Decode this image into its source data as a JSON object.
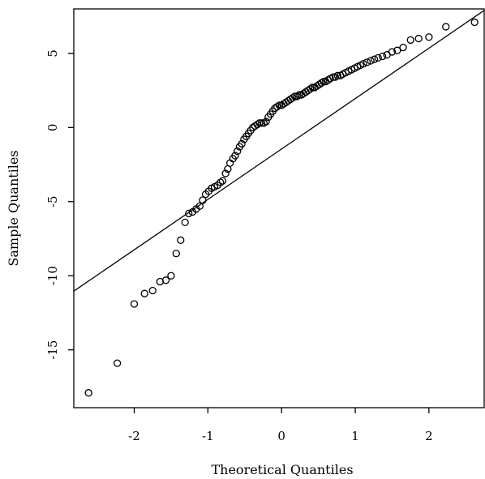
{
  "chart_data": {
    "type": "scatter",
    "title": "",
    "xlabel": "Theoretical Quantiles",
    "ylabel": "Sample Quantiles",
    "xlim": [
      -2.82,
      2.75
    ],
    "ylim": [
      -18.9,
      8.0
    ],
    "x_ticks": [
      -2,
      -1,
      0,
      1,
      2
    ],
    "x_tick_labels": [
      "-2",
      "-1",
      "0",
      "1",
      "2"
    ],
    "y_ticks": [
      -15,
      -10,
      -5,
      0,
      5
    ],
    "y_tick_labels": [
      "-15",
      "-10",
      "-5",
      "0",
      "5"
    ],
    "grid": false,
    "marker": "open-circle",
    "colors": {
      "points": "#000000",
      "line": "#000000",
      "axes": "#000000"
    },
    "reference_line": {
      "slope": 3.4,
      "intercept": -1.45
    },
    "points": [
      {
        "x": -2.62,
        "y": -17.9
      },
      {
        "x": -2.23,
        "y": -15.9
      },
      {
        "x": -2.0,
        "y": -11.9
      },
      {
        "x": -1.86,
        "y": -11.2
      },
      {
        "x": -1.75,
        "y": -11.0
      },
      {
        "x": -1.65,
        "y": -10.4
      },
      {
        "x": -1.57,
        "y": -10.3
      },
      {
        "x": -1.5,
        "y": -10.0
      },
      {
        "x": -1.43,
        "y": -8.5
      },
      {
        "x": -1.37,
        "y": -7.6
      },
      {
        "x": -1.31,
        "y": -6.4
      },
      {
        "x": -1.26,
        "y": -5.8
      },
      {
        "x": -1.21,
        "y": -5.7
      },
      {
        "x": -1.16,
        "y": -5.5
      },
      {
        "x": -1.11,
        "y": -5.3
      },
      {
        "x": -1.07,
        "y": -4.9
      },
      {
        "x": -1.03,
        "y": -4.5
      },
      {
        "x": -0.99,
        "y": -4.3
      },
      {
        "x": -0.95,
        "y": -4.1
      },
      {
        "x": -0.91,
        "y": -4.0
      },
      {
        "x": -0.87,
        "y": -3.9
      },
      {
        "x": -0.83,
        "y": -3.7
      },
      {
        "x": -0.8,
        "y": -3.6
      },
      {
        "x": -0.76,
        "y": -3.1
      },
      {
        "x": -0.73,
        "y": -2.8
      },
      {
        "x": -0.7,
        "y": -2.4
      },
      {
        "x": -0.66,
        "y": -2.1
      },
      {
        "x": -0.63,
        "y": -1.9
      },
      {
        "x": -0.6,
        "y": -1.6
      },
      {
        "x": -0.57,
        "y": -1.3
      },
      {
        "x": -0.54,
        "y": -1.1
      },
      {
        "x": -0.51,
        "y": -0.8
      },
      {
        "x": -0.48,
        "y": -0.6
      },
      {
        "x": -0.45,
        "y": -0.4
      },
      {
        "x": -0.42,
        "y": -0.2
      },
      {
        "x": -0.39,
        "y": 0.0
      },
      {
        "x": -0.36,
        "y": 0.1
      },
      {
        "x": -0.33,
        "y": 0.2
      },
      {
        "x": -0.3,
        "y": 0.3
      },
      {
        "x": -0.27,
        "y": 0.3
      },
      {
        "x": -0.24,
        "y": 0.3
      },
      {
        "x": -0.21,
        "y": 0.4
      },
      {
        "x": -0.18,
        "y": 0.7
      },
      {
        "x": -0.15,
        "y": 0.9
      },
      {
        "x": -0.12,
        "y": 1.1
      },
      {
        "x": -0.09,
        "y": 1.3
      },
      {
        "x": -0.06,
        "y": 1.4
      },
      {
        "x": -0.03,
        "y": 1.5
      },
      {
        "x": 0.0,
        "y": 1.5
      },
      {
        "x": 0.03,
        "y": 1.6
      },
      {
        "x": 0.06,
        "y": 1.7
      },
      {
        "x": 0.09,
        "y": 1.8
      },
      {
        "x": 0.12,
        "y": 1.9
      },
      {
        "x": 0.15,
        "y": 2.0
      },
      {
        "x": 0.18,
        "y": 2.1
      },
      {
        "x": 0.21,
        "y": 2.1
      },
      {
        "x": 0.24,
        "y": 2.2
      },
      {
        "x": 0.27,
        "y": 2.2
      },
      {
        "x": 0.3,
        "y": 2.3
      },
      {
        "x": 0.33,
        "y": 2.4
      },
      {
        "x": 0.36,
        "y": 2.5
      },
      {
        "x": 0.39,
        "y": 2.6
      },
      {
        "x": 0.42,
        "y": 2.7
      },
      {
        "x": 0.45,
        "y": 2.7
      },
      {
        "x": 0.48,
        "y": 2.8
      },
      {
        "x": 0.51,
        "y": 2.9
      },
      {
        "x": 0.54,
        "y": 3.0
      },
      {
        "x": 0.57,
        "y": 3.1
      },
      {
        "x": 0.6,
        "y": 3.1
      },
      {
        "x": 0.63,
        "y": 3.2
      },
      {
        "x": 0.66,
        "y": 3.3
      },
      {
        "x": 0.7,
        "y": 3.4
      },
      {
        "x": 0.73,
        "y": 3.4
      },
      {
        "x": 0.76,
        "y": 3.5
      },
      {
        "x": 0.8,
        "y": 3.5
      },
      {
        "x": 0.83,
        "y": 3.6
      },
      {
        "x": 0.87,
        "y": 3.7
      },
      {
        "x": 0.91,
        "y": 3.8
      },
      {
        "x": 0.95,
        "y": 3.9
      },
      {
        "x": 0.99,
        "y": 4.0
      },
      {
        "x": 1.03,
        "y": 4.1
      },
      {
        "x": 1.07,
        "y": 4.2
      },
      {
        "x": 1.11,
        "y": 4.3
      },
      {
        "x": 1.16,
        "y": 4.4
      },
      {
        "x": 1.21,
        "y": 4.5
      },
      {
        "x": 1.26,
        "y": 4.6
      },
      {
        "x": 1.31,
        "y": 4.7
      },
      {
        "x": 1.37,
        "y": 4.8
      },
      {
        "x": 1.43,
        "y": 4.9
      },
      {
        "x": 1.5,
        "y": 5.1
      },
      {
        "x": 1.57,
        "y": 5.2
      },
      {
        "x": 1.65,
        "y": 5.4
      },
      {
        "x": 1.75,
        "y": 5.9
      },
      {
        "x": 1.86,
        "y": 6.0
      },
      {
        "x": 2.0,
        "y": 6.1
      },
      {
        "x": 2.23,
        "y": 6.8
      },
      {
        "x": 2.62,
        "y": 7.1
      }
    ]
  }
}
